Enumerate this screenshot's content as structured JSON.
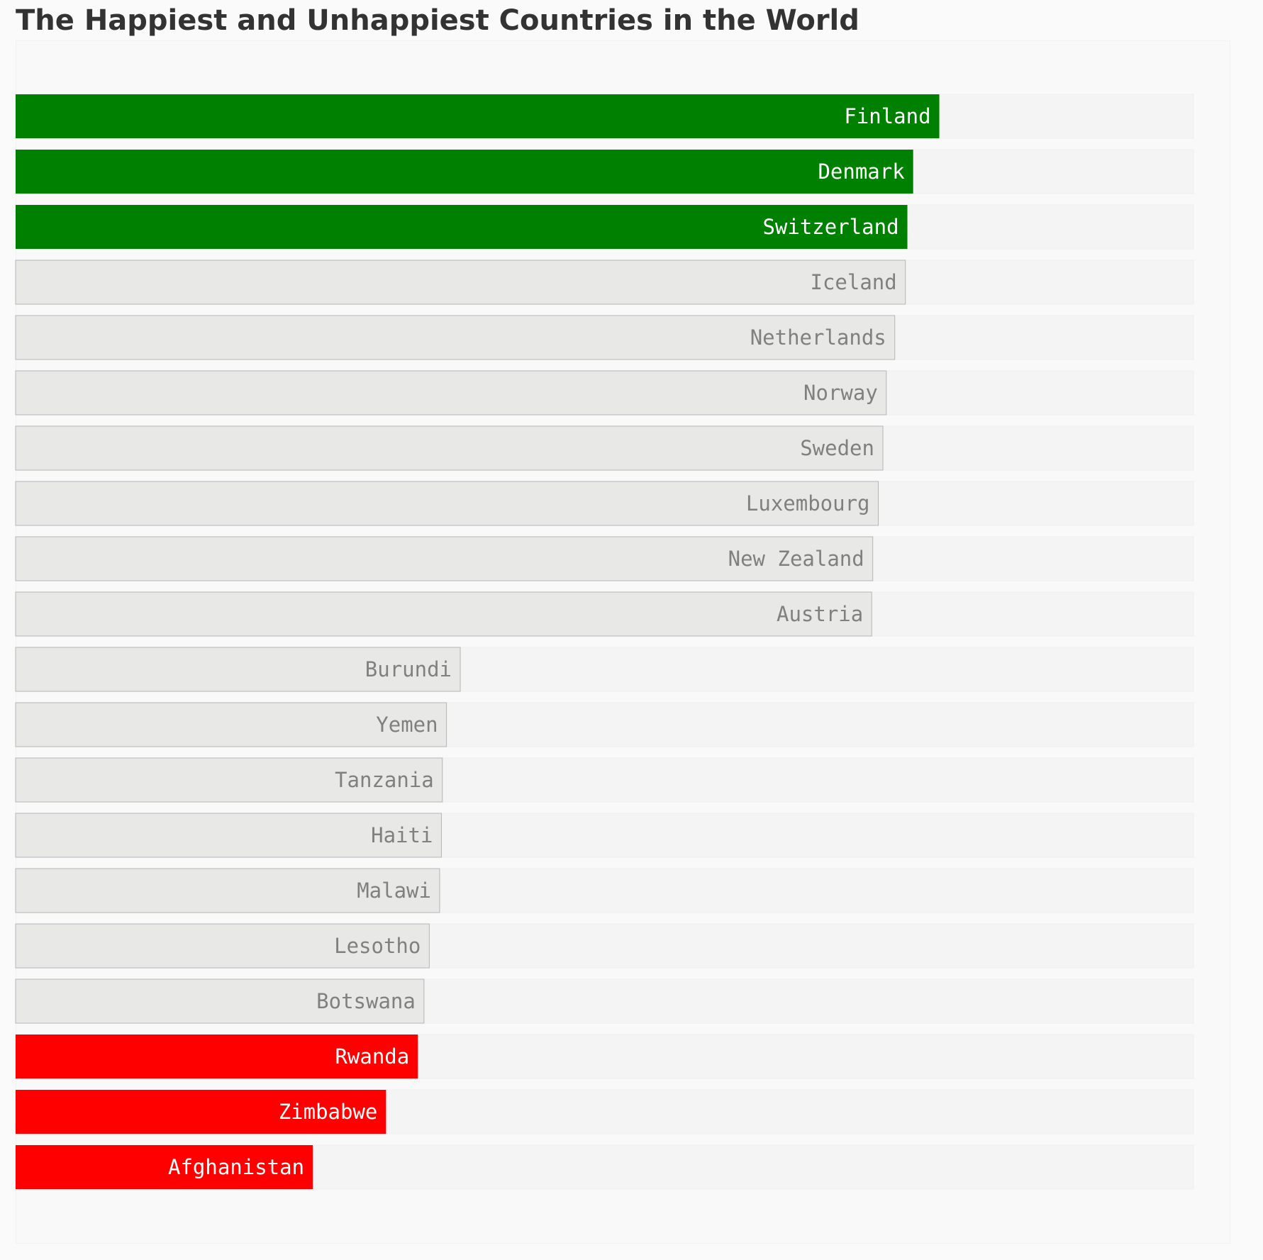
{
  "chart_data": {
    "type": "bar",
    "orientation": "horizontal",
    "title": "The Happiest and Unhappiest Countries in the World",
    "xlabel": "",
    "ylabel": "",
    "xlim": [
      0,
      10
    ],
    "grid": false,
    "legend": "none",
    "categories": [
      "Finland",
      "Denmark",
      "Switzerland",
      "Iceland",
      "Netherlands",
      "Norway",
      "Sweden",
      "Luxembourg",
      "New Zealand",
      "Austria",
      "Burundi",
      "Yemen",
      "Tanzania",
      "Haiti",
      "Malawi",
      "Lesotho",
      "Botswana",
      "Rwanda",
      "Zimbabwe",
      "Afghanistan"
    ],
    "values": [
      7.842,
      7.62,
      7.571,
      7.554,
      7.464,
      7.392,
      7.363,
      7.324,
      7.277,
      7.268,
      3.775,
      3.658,
      3.623,
      3.615,
      3.6,
      3.512,
      3.467,
      3.415,
      3.145,
      2.523
    ],
    "highlight": [
      "top3",
      "top3",
      "top3",
      "none",
      "none",
      "none",
      "none",
      "none",
      "none",
      "none",
      "none",
      "none",
      "none",
      "none",
      "none",
      "none",
      "none",
      "bottom3",
      "bottom3",
      "bottom3"
    ],
    "colors": {
      "top3": "#008000",
      "bottom3": "#ff0000",
      "none": "#e8e9e6",
      "none_edge": "#b5b5b5",
      "track": "#f4f4f4",
      "label_highlight": "#ffffff",
      "label_none": "#808080"
    }
  }
}
